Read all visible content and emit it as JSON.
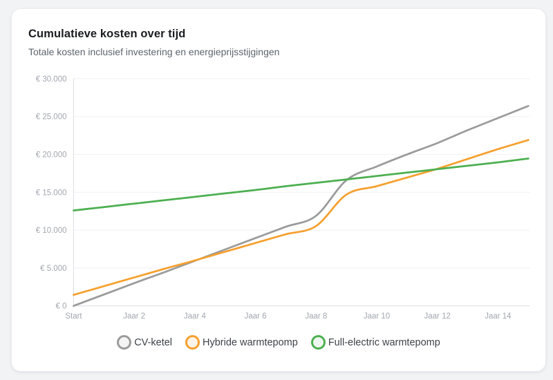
{
  "card": {
    "title": "Cumulatieve kosten over tijd",
    "subtitle": "Totale kosten inclusief investering en energieprijsstijgingen"
  },
  "colors": {
    "page_bg": "#f2f3f5",
    "card_bg": "#ffffff",
    "grid": "#f1f1f3",
    "axis": "#dcdee3",
    "tick_text": "#a2a6ad",
    "series_gray": "#9b9b9b",
    "series_orange": "#f5a02f",
    "series_green": "#4caf50"
  },
  "legend": {
    "items": [
      {
        "label": "CV-ketel",
        "color": "#9b9b9b",
        "fill": "#f4f4f4"
      },
      {
        "label": "Hybride warmtepomp",
        "color": "#f5a02f",
        "fill": "#fdf3e7"
      },
      {
        "label": "Full-electric warmtepomp",
        "color": "#4caf50",
        "fill": "#eef7ef"
      }
    ]
  },
  "chart_data": {
    "type": "line",
    "title": "Cumulatieve kosten over tijd",
    "subtitle": "Totale kosten inclusief investering en energieprijsstijgingen",
    "xlabel": "",
    "ylabel": "",
    "x_years": [
      0,
      1,
      2,
      3,
      4,
      5,
      6,
      7,
      8,
      9,
      10,
      11,
      12,
      13,
      14,
      15
    ],
    "x_tick_positions": [
      0,
      2,
      4,
      6,
      8,
      10,
      12,
      14
    ],
    "x_tick_labels": [
      "Start",
      "Jaar 2",
      "Jaar 4",
      "Jaar 6",
      "Jaar 8",
      "Jaar 10",
      "Jaar 12",
      "Jaar 14"
    ],
    "y_ticks": [
      0,
      5000,
      10000,
      15000,
      20000,
      25000,
      30000
    ],
    "y_tick_labels": [
      "€ 0",
      "€ 5.000",
      "€ 10.000",
      "€ 15.000",
      "€ 20.000",
      "€ 25.000",
      "€ 30.000"
    ],
    "ylim": [
      0,
      30000
    ],
    "xlim_years": [
      0,
      15
    ],
    "grid": "horizontal",
    "legend_position": "bottom",
    "curve": "monotone",
    "series": [
      {
        "name": "CV-ketel",
        "color": "#9b9b9b",
        "values": [
          0,
          1500,
          3000,
          4450,
          5950,
          7450,
          8950,
          10450,
          11900,
          16600,
          18400,
          20000,
          21500,
          23200,
          24800,
          26400
        ]
      },
      {
        "name": "Hybride warmtepomp",
        "color": "#f5a02f",
        "values": [
          1450,
          2600,
          3750,
          4900,
          6000,
          7150,
          8300,
          9450,
          10550,
          14700,
          15800,
          16950,
          18100,
          19400,
          20700,
          21900
        ]
      },
      {
        "name": "Full-electric warmtepomp",
        "color": "#4caf50",
        "values": [
          12600,
          13050,
          13500,
          13950,
          14400,
          14850,
          15300,
          15800,
          16250,
          16700,
          17150,
          17600,
          18050,
          18500,
          18950,
          19450
        ]
      }
    ]
  }
}
